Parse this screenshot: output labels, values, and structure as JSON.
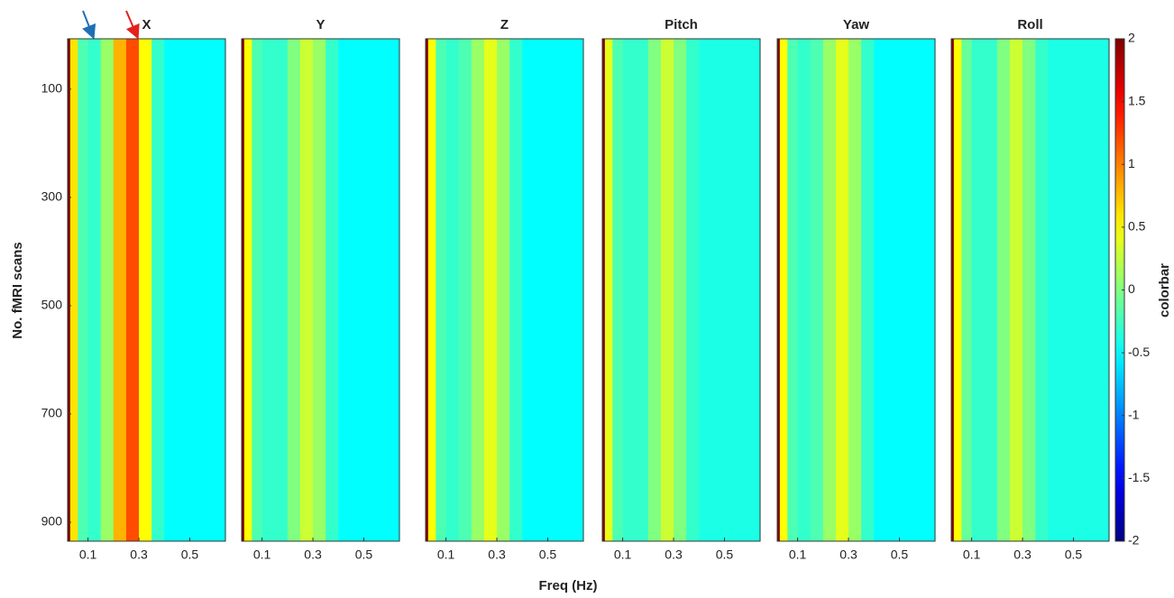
{
  "chart_data": {
    "type": "heatmap",
    "colormap": "jet",
    "xlabel": "Freq (Hz)",
    "ylabel": "No. fMRI scans",
    "colorbar_label": "colorbar",
    "x_edges": [
      0.02,
      0.03,
      0.06,
      0.1,
      0.15,
      0.2,
      0.25,
      0.3,
      0.35,
      0.4,
      0.5,
      0.64
    ],
    "xlim": [
      0.02,
      0.64
    ],
    "xticks": [
      0.1,
      0.3,
      0.5
    ],
    "ylim": [
      7,
      935
    ],
    "yticks": [
      100,
      300,
      500,
      700,
      900
    ],
    "clim": [
      -2,
      2
    ],
    "cticks": [
      -2,
      -1.5,
      -1,
      -0.5,
      0,
      0.5,
      1,
      1.5,
      2
    ],
    "panels": [
      {
        "title": "X",
        "values": [
          2,
          0.6,
          -0.2,
          -0.3,
          0.1,
          0.8,
          1.2,
          0.5,
          -0.3,
          -0.5,
          -0.5
        ]
      },
      {
        "title": "Y",
        "values": [
          2,
          0.5,
          -0.2,
          -0.3,
          -0.3,
          0,
          0.3,
          0.1,
          -0.3,
          -0.5,
          -0.5
        ]
      },
      {
        "title": "Z",
        "values": [
          2,
          0.5,
          -0.2,
          -0.3,
          -0.2,
          0.1,
          0.4,
          0.1,
          -0.3,
          -0.5,
          -0.5
        ]
      },
      {
        "title": "Pitch",
        "values": [
          2,
          0.4,
          -0.2,
          -0.3,
          -0.3,
          0,
          0.3,
          0,
          -0.3,
          -0.4,
          -0.4
        ]
      },
      {
        "title": "Yaw",
        "values": [
          2,
          0.5,
          -0.2,
          -0.3,
          -0.2,
          0.1,
          0.4,
          0.1,
          -0.3,
          -0.5,
          -0.5
        ]
      },
      {
        "title": "Roll",
        "values": [
          2,
          0.5,
          -0.1,
          -0.3,
          -0.3,
          0,
          0.3,
          0,
          -0.3,
          -0.4,
          -0.4
        ]
      }
    ]
  }
}
